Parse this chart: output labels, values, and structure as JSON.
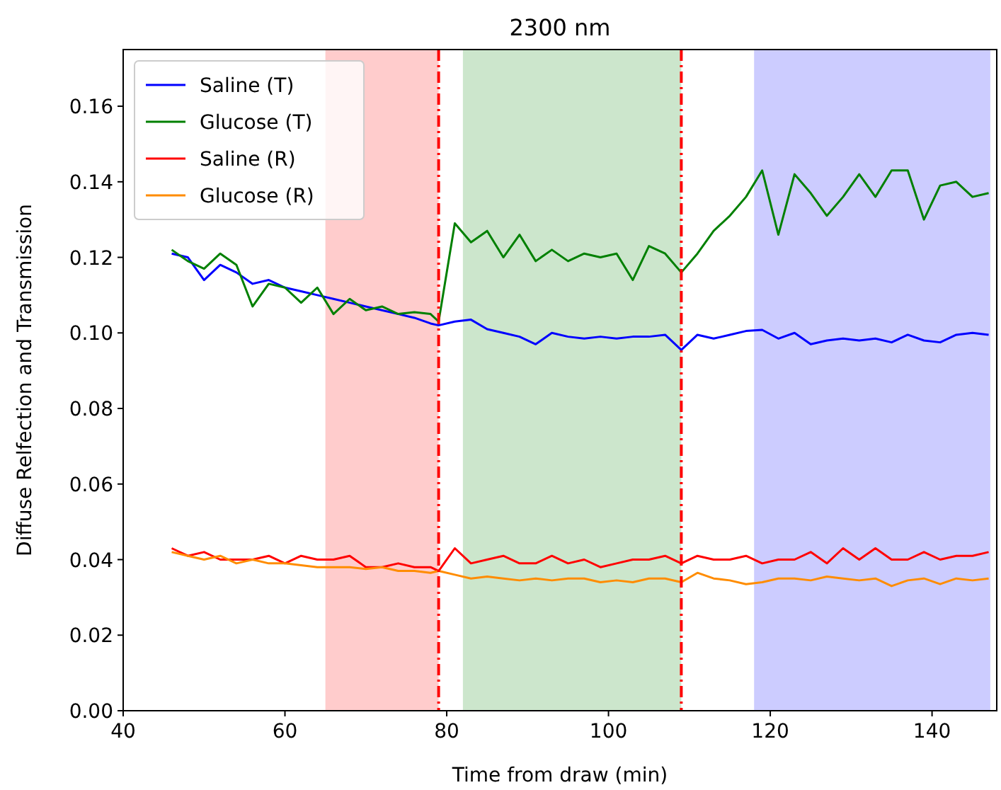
{
  "chart_data": {
    "type": "line",
    "title": "2300 nm",
    "xlabel": "Time from draw (min)",
    "ylabel": "Diffuse Relfection and Transmission",
    "x": [
      46,
      48,
      50,
      52,
      54,
      56,
      58,
      60,
      62,
      64,
      66,
      68,
      70,
      72,
      74,
      76,
      78,
      79,
      81,
      83,
      85,
      87,
      89,
      91,
      93,
      95,
      97,
      99,
      101,
      103,
      105,
      107,
      109,
      111,
      113,
      115,
      117,
      119,
      121,
      123,
      125,
      127,
      129,
      131,
      133,
      135,
      137,
      139,
      141,
      143,
      145,
      147
    ],
    "series": [
      {
        "name": "Saline (T)",
        "color": "#0000ff",
        "values": [
          0.121,
          0.12,
          0.114,
          0.118,
          0.116,
          0.113,
          0.114,
          0.112,
          0.111,
          0.11,
          0.109,
          0.108,
          0.107,
          0.106,
          0.105,
          0.104,
          0.1025,
          0.102,
          0.103,
          0.1035,
          0.101,
          0.1,
          0.099,
          0.097,
          0.1,
          0.099,
          0.0985,
          0.099,
          0.0985,
          0.099,
          0.099,
          0.0995,
          0.0955,
          0.0995,
          0.0985,
          0.0995,
          0.1005,
          0.1008,
          0.0985,
          0.1,
          0.097,
          0.098,
          0.0985,
          0.098,
          0.0985,
          0.0975,
          0.0995,
          0.098,
          0.0975,
          0.0995,
          0.1,
          0.0995
        ]
      },
      {
        "name": "Glucose (T)",
        "color": "#008000",
        "values": [
          0.122,
          0.119,
          0.117,
          0.121,
          0.118,
          0.107,
          0.113,
          0.112,
          0.108,
          0.112,
          0.105,
          0.109,
          0.106,
          0.107,
          0.105,
          0.1055,
          0.105,
          0.103,
          0.129,
          0.124,
          0.127,
          0.12,
          0.126,
          0.119,
          0.122,
          0.119,
          0.121,
          0.12,
          0.121,
          0.114,
          0.123,
          0.121,
          0.116,
          0.121,
          0.127,
          0.131,
          0.136,
          0.143,
          0.126,
          0.142,
          0.137,
          0.131,
          0.136,
          0.142,
          0.136,
          0.143,
          0.143,
          0.13,
          0.139,
          0.14,
          0.136,
          0.137
        ]
      },
      {
        "name": "Saline (R)",
        "color": "#ff0000",
        "values": [
          0.043,
          0.041,
          0.042,
          0.04,
          0.04,
          0.04,
          0.041,
          0.039,
          0.041,
          0.04,
          0.04,
          0.041,
          0.038,
          0.038,
          0.039,
          0.038,
          0.038,
          0.037,
          0.043,
          0.039,
          0.04,
          0.041,
          0.039,
          0.039,
          0.041,
          0.039,
          0.04,
          0.038,
          0.039,
          0.04,
          0.04,
          0.041,
          0.039,
          0.041,
          0.04,
          0.04,
          0.041,
          0.039,
          0.04,
          0.04,
          0.042,
          0.039,
          0.043,
          0.04,
          0.043,
          0.04,
          0.04,
          0.042,
          0.04,
          0.041,
          0.041,
          0.042
        ]
      },
      {
        "name": "Glucose (R)",
        "color": "#ff8c00",
        "values": [
          0.042,
          0.041,
          0.04,
          0.041,
          0.039,
          0.04,
          0.039,
          0.039,
          0.0385,
          0.038,
          0.038,
          0.038,
          0.0375,
          0.038,
          0.037,
          0.037,
          0.0365,
          0.037,
          0.036,
          0.035,
          0.0355,
          0.035,
          0.0345,
          0.035,
          0.0345,
          0.035,
          0.035,
          0.034,
          0.0345,
          0.034,
          0.035,
          0.035,
          0.034,
          0.0365,
          0.035,
          0.0345,
          0.0335,
          0.034,
          0.035,
          0.035,
          0.0345,
          0.0355,
          0.035,
          0.0345,
          0.035,
          0.033,
          0.0345,
          0.035,
          0.0335,
          0.035,
          0.0345,
          0.035
        ]
      }
    ],
    "xlim": [
      40,
      148
    ],
    "xticks": [
      40,
      60,
      80,
      100,
      120,
      140
    ],
    "ylim": [
      0,
      0.175
    ],
    "yticks": [
      {
        "value": 0,
        "label": "0.00"
      },
      {
        "value": 0.02,
        "label": "0.02"
      },
      {
        "value": 0.04,
        "label": "0.04"
      },
      {
        "value": 0.06,
        "label": "0.06"
      },
      {
        "value": 0.08,
        "label": "0.08"
      },
      {
        "value": 0.1,
        "label": "0.10"
      },
      {
        "value": 0.12,
        "label": "0.12"
      },
      {
        "value": 0.14,
        "label": "0.14"
      },
      {
        "value": 0.16,
        "label": "0.16"
      }
    ],
    "bands": [
      {
        "axis": "x",
        "from": 65,
        "to": 79,
        "color": "#ffcccc"
      },
      {
        "axis": "x",
        "from": 82,
        "to": 109,
        "color": "#cce6cc"
      },
      {
        "axis": "x",
        "from": 118,
        "to": 147.2,
        "color": "#ccccff"
      }
    ],
    "ref_lines": [
      {
        "axis": "x",
        "value": 79,
        "color": "#ff0000",
        "line_style": "dashdot"
      },
      {
        "axis": "x",
        "value": 109,
        "color": "#ff0000",
        "line_style": "dashdot"
      }
    ],
    "legend": "top left",
    "marker": "none",
    "line_style": "solid",
    "grid": false
  }
}
